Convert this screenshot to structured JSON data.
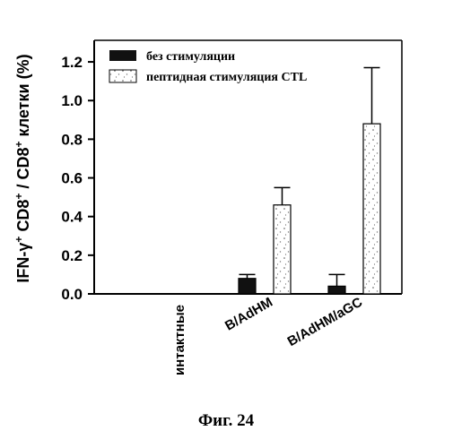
{
  "chart_data": {
    "type": "bar",
    "categories": [
      "интактные",
      "B/AdHM",
      "B/AdHM/aGC"
    ],
    "series": [
      {
        "name": "без стимуляции",
        "values": [
          0,
          0.08,
          0.04
        ],
        "errors": [
          0,
          0.02,
          0.06
        ],
        "color": "#111111"
      },
      {
        "name": "пептидная стимуляция CTL",
        "values": [
          0,
          0.46,
          0.88
        ],
        "errors": [
          0,
          0.09,
          0.29
        ],
        "color": "#ffffff"
      }
    ],
    "ylabel": {
      "base1": "IFN-γ",
      "sup1": "+",
      "base2": " CD8",
      "sup2": "+",
      "base3": " / CD8",
      "sup3": "+",
      "base4": " клетки (%)"
    },
    "ylim": [
      0,
      1.3
    ],
    "yticks": [
      "0.0",
      "0.2",
      "0.4",
      "0.6",
      "0.8",
      "1.0",
      "1.2"
    ],
    "ytick_values": [
      0,
      0.2,
      0.4,
      0.6,
      0.8,
      1.0,
      1.2
    ],
    "legend_position": "top-left",
    "grid": false
  },
  "caption": "Фиг. 24"
}
